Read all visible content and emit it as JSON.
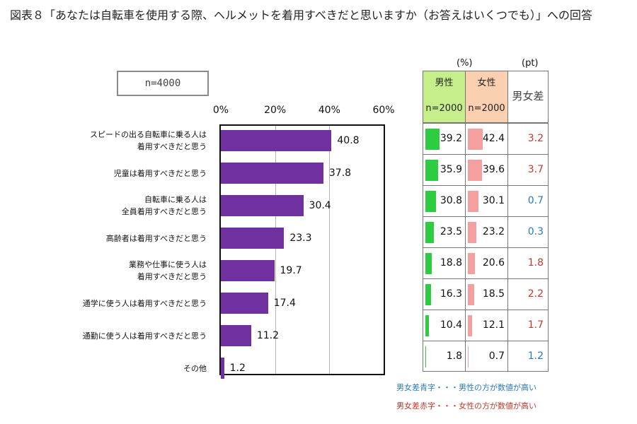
{
  "title": "図表８「あなたは自転車を使用する際、ヘルメットを着用すべきだと思いますか（お答えはいくつでも）」への回答",
  "sample": "n=4000",
  "units": {
    "percent": "(%)",
    "points": "(pt)"
  },
  "table_headers": {
    "male": "男性",
    "male_n": "n=2000",
    "female": "女性",
    "female_n": "n=2000",
    "diff": "男女差"
  },
  "notes": {
    "blue": "男女差青字・・・男性の方が数値が高い",
    "red": "男女差赤字・・・女性の方が数値が高い"
  },
  "colors": {
    "bar": "#7030a0",
    "male": "#2ecc40",
    "female": "#f4a0a0",
    "diff_blue": "#2a7ab8",
    "diff_red": "#c0392b",
    "male_header": "#c6ef8c",
    "female_header": "#fbd0b0"
  },
  "chart_data": {
    "type": "bar",
    "orientation": "horizontal",
    "xlim": [
      0,
      60
    ],
    "ticks": [
      "0%",
      "20%",
      "40%",
      "60%"
    ],
    "grid": true,
    "categories": [
      "スピードの出る自転車に乗る人は\n着用すべきだと思う",
      "児童は着用すべきだと思う",
      "自転車に乗る人は\n全員着用すべきだと思う",
      "高齢者は着用すべきだと思う",
      "業務や仕事に使う人は\n着用すべきだと思う",
      "通学に使う人は着用すべきだと思う",
      "通勤に使う人は着用すべきだと思う",
      "その他"
    ],
    "values": [
      40.8,
      37.8,
      30.4,
      23.3,
      19.7,
      17.4,
      11.2,
      1.2
    ],
    "male": [
      39.2,
      35.9,
      30.8,
      23.5,
      18.8,
      16.3,
      10.4,
      1.8
    ],
    "female": [
      42.4,
      39.6,
      30.1,
      23.2,
      20.6,
      18.5,
      12.1,
      0.7
    ],
    "diff": [
      {
        "value": "3.2",
        "higher": "female"
      },
      {
        "value": "3.7",
        "higher": "female"
      },
      {
        "value": "0.7",
        "higher": "male"
      },
      {
        "value": "0.3",
        "higher": "male"
      },
      {
        "value": "1.8",
        "higher": "female"
      },
      {
        "value": "2.2",
        "higher": "female"
      },
      {
        "value": "1.7",
        "higher": "female"
      },
      {
        "value": "1.2",
        "higher": "male"
      }
    ]
  }
}
